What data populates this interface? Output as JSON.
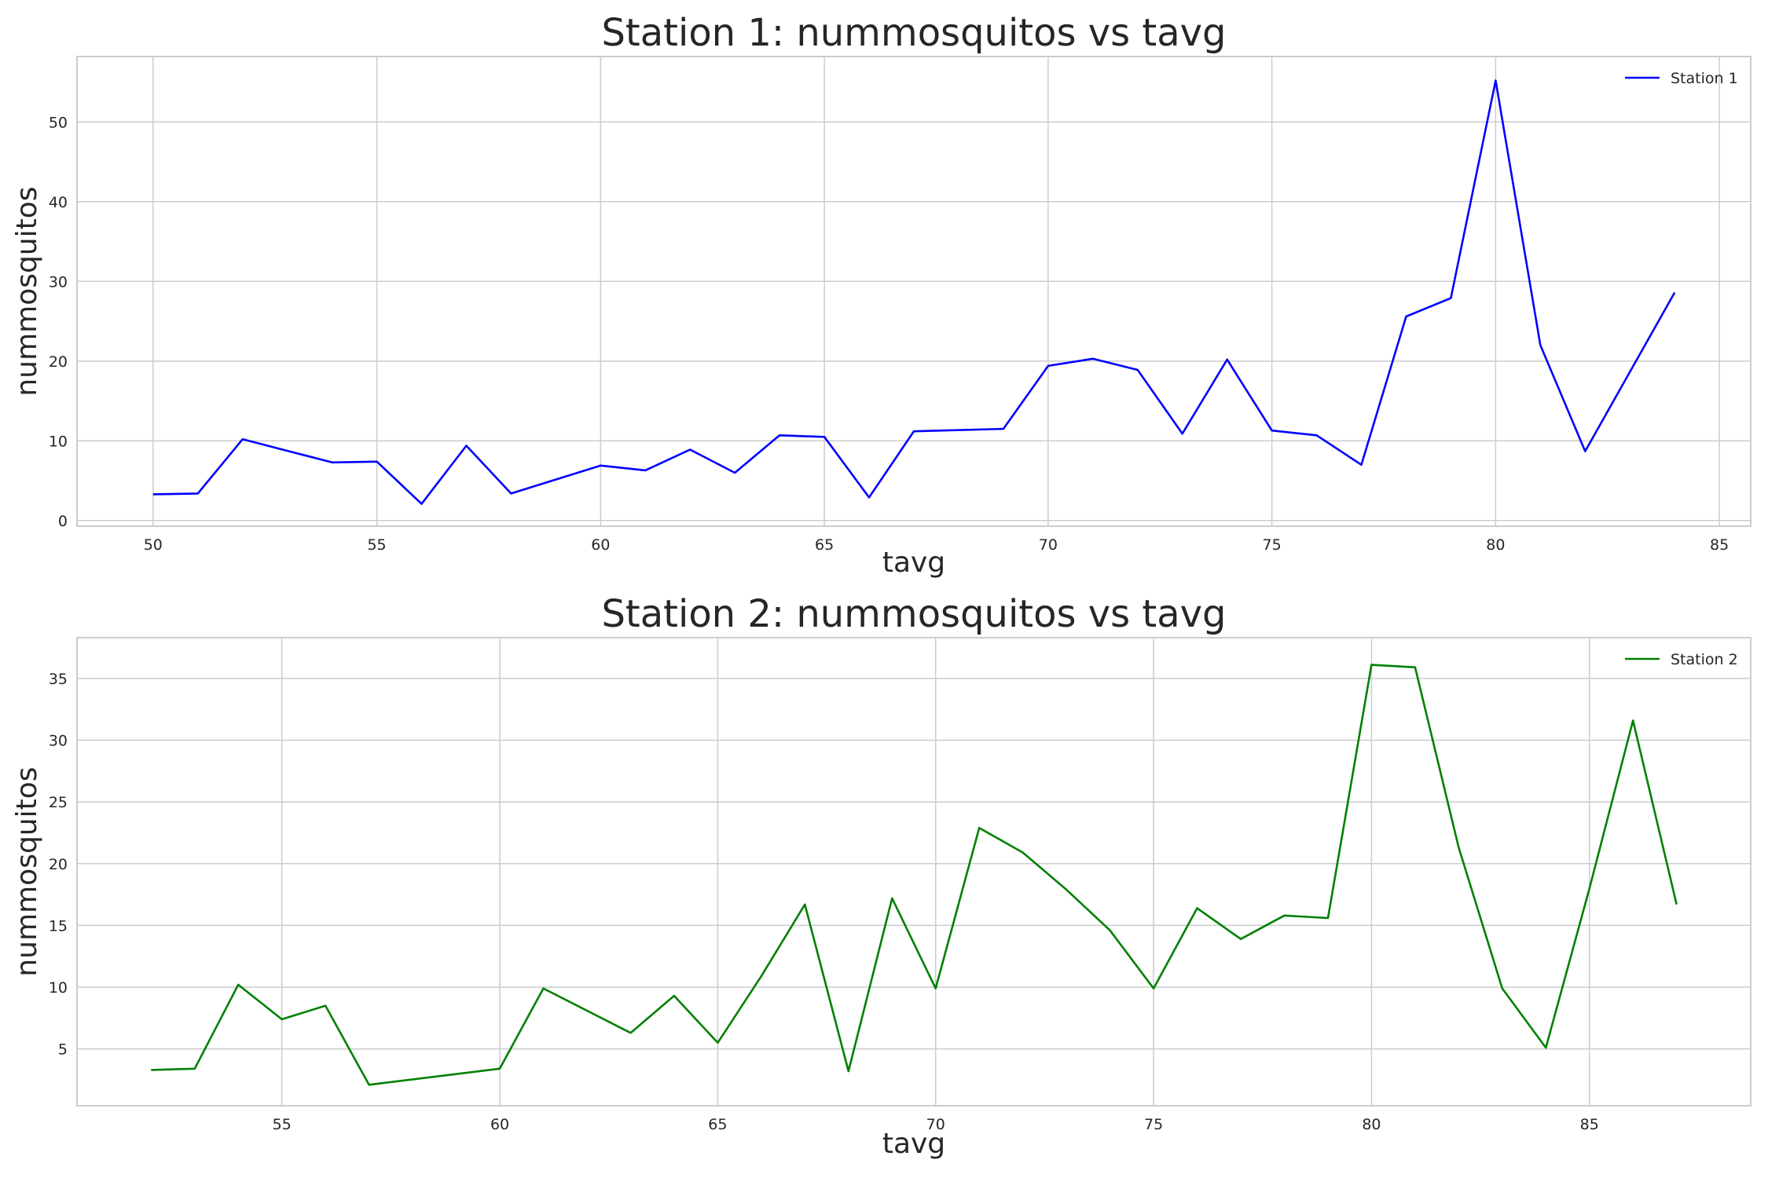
{
  "chart_data": [
    {
      "type": "line",
      "title": "Station 1:  nummosquitos vs  tavg",
      "xlabel": "tavg",
      "ylabel": "nummosquitos",
      "xlim": [
        48.3,
        85.7
      ],
      "ylim": [
        -0.7,
        58.2
      ],
      "xticks": [
        50,
        55,
        60,
        65,
        70,
        75,
        80,
        85
      ],
      "yticks": [
        0,
        10,
        20,
        30,
        40,
        50
      ],
      "grid": true,
      "legend_position": "top-right",
      "series": [
        {
          "name": "Station 1",
          "color": "#0000ff",
          "x": [
            50,
            51,
            52,
            54,
            55,
            56,
            57,
            58,
            60,
            61,
            62,
            63,
            64,
            65,
            66,
            67,
            69,
            70,
            71,
            72,
            73,
            74,
            75,
            76,
            77,
            78,
            79,
            80,
            81,
            82,
            84
          ],
          "y": [
            3.3,
            3.4,
            10.2,
            7.3,
            7.4,
            2.1,
            9.4,
            3.4,
            6.9,
            6.3,
            8.9,
            6.0,
            10.7,
            10.5,
            2.9,
            11.2,
            11.5,
            19.4,
            20.3,
            18.9,
            10.9,
            20.2,
            11.3,
            10.7,
            7.0,
            25.6,
            27.9,
            55.2,
            22.0,
            8.7,
            28.6
          ]
        }
      ]
    },
    {
      "type": "line",
      "title": "Station 2:  nummosquitos vs  tavg",
      "xlabel": "tavg",
      "ylabel": "nummosquitos",
      "xlim": [
        50.3,
        88.7
      ],
      "ylim": [
        0.4,
        38.3
      ],
      "xticks": [
        55,
        60,
        65,
        70,
        75,
        80,
        85
      ],
      "yticks": [
        5,
        10,
        15,
        20,
        25,
        30,
        35
      ],
      "grid": true,
      "legend_position": "top-right",
      "series": [
        {
          "name": "Station 2",
          "color": "#008000",
          "x": [
            52,
            53,
            54,
            55,
            56,
            57,
            60,
            61,
            63,
            64,
            65,
            66,
            67,
            68,
            69,
            70,
            71,
            72,
            73,
            74,
            75,
            76,
            77,
            78,
            79,
            80,
            81,
            82,
            83,
            84,
            85,
            86,
            87
          ],
          "y": [
            3.3,
            3.4,
            10.2,
            7.4,
            8.5,
            2.1,
            3.4,
            9.9,
            6.3,
            9.3,
            5.5,
            10.9,
            16.7,
            3.2,
            17.2,
            9.9,
            22.9,
            20.9,
            17.9,
            14.6,
            9.9,
            16.4,
            13.9,
            15.8,
            15.6,
            36.1,
            35.9,
            21.3,
            9.9,
            5.1,
            18.0,
            31.6,
            16.7
          ]
        }
      ]
    }
  ]
}
